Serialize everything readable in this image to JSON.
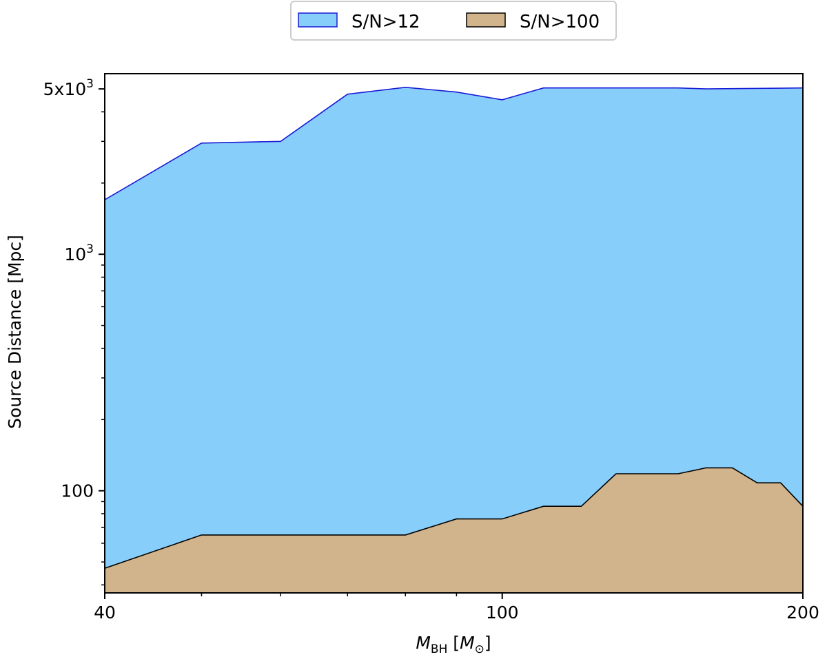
{
  "chart_data": {
    "type": "area",
    "x_label": "M_BH [M_⊙]",
    "y_label": "Source Distance [Mpc]",
    "x_scale": "log",
    "y_scale": "log",
    "xlim": [
      40,
      200
    ],
    "ylim": [
      37,
      5800
    ],
    "x_ticks": [
      {
        "value": 40,
        "label": "40"
      },
      {
        "value": 100,
        "label": "100"
      },
      {
        "value": 200,
        "label": "200"
      }
    ],
    "x_minor_ticks": [
      50,
      60,
      70,
      80,
      90
    ],
    "y_ticks": [
      {
        "value": 100,
        "base": "100",
        "exp": ""
      },
      {
        "value": 1000,
        "base": "10",
        "exp": "3"
      },
      {
        "value": 5000,
        "base": "5x10",
        "exp": "3"
      }
    ],
    "y_minor_ticks": [
      40,
      50,
      60,
      70,
      80,
      90,
      200,
      300,
      400,
      500,
      600,
      700,
      800,
      900,
      2000,
      3000,
      4000
    ],
    "legend": {
      "position": "top-center",
      "entries": [
        "S/N>12",
        "S/N>100"
      ]
    },
    "series": [
      {
        "name": "S/N>12",
        "fill": "#87cefa",
        "stroke": "#1a1ad6",
        "x": [
          40,
          50,
          60,
          70,
          80,
          90,
          100,
          110,
          150,
          160,
          200
        ],
        "y": [
          1700,
          2950,
          3000,
          4750,
          5080,
          4850,
          4500,
          5050,
          5050,
          5000,
          5050
        ]
      },
      {
        "name": "S/N>100",
        "fill": "#d2b48c",
        "stroke": "#000000",
        "x": [
          40,
          50,
          60,
          70,
          80,
          90,
          100,
          110,
          120,
          130,
          140,
          150,
          160,
          170,
          180,
          190,
          200
        ],
        "y": [
          47,
          65,
          65,
          65,
          65,
          76,
          76,
          86,
          86,
          118,
          118,
          118,
          125,
          125,
          108,
          108,
          86
        ]
      }
    ]
  }
}
